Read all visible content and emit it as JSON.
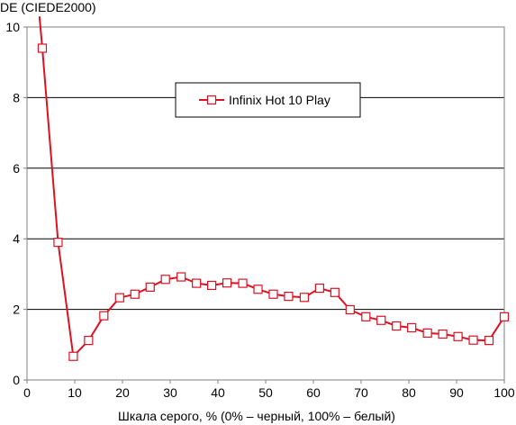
{
  "chart_data": {
    "type": "line",
    "title": "",
    "ylabel": "DE (CIEDE2000)",
    "xlabel": "Шкала серого, % (0% – черный, 100% – белый)",
    "xlim": [
      0,
      100
    ],
    "ylim": [
      0,
      10
    ],
    "x_ticks": [
      0,
      10,
      20,
      30,
      40,
      50,
      60,
      70,
      80,
      90,
      100
    ],
    "y_ticks": [
      0,
      2,
      4,
      6,
      8,
      10
    ],
    "grid": "horizontal",
    "legend": {
      "placement": "top-center",
      "entries": [
        "Infinix Hot 10 Play"
      ]
    },
    "colors": {
      "series": "#dd1122",
      "marker_fill": "#ffffff",
      "grid": "#000000",
      "frame": "#808080"
    },
    "series": [
      {
        "name": "Infinix Hot 10 Play",
        "marker": "square",
        "line_start": {
          "x": 2.6,
          "y": 10.3
        },
        "points": [
          {
            "x": 3.2,
            "y": 9.4
          },
          {
            "x": 6.5,
            "y": 3.9
          },
          {
            "x": 9.7,
            "y": 0.67
          },
          {
            "x": 12.9,
            "y": 1.12
          },
          {
            "x": 16.1,
            "y": 1.82
          },
          {
            "x": 19.4,
            "y": 2.33
          },
          {
            "x": 22.6,
            "y": 2.43
          },
          {
            "x": 25.8,
            "y": 2.63
          },
          {
            "x": 29.0,
            "y": 2.85
          },
          {
            "x": 32.3,
            "y": 2.92
          },
          {
            "x": 35.5,
            "y": 2.74
          },
          {
            "x": 38.7,
            "y": 2.68
          },
          {
            "x": 41.9,
            "y": 2.75
          },
          {
            "x": 45.2,
            "y": 2.74
          },
          {
            "x": 48.4,
            "y": 2.57
          },
          {
            "x": 51.6,
            "y": 2.43
          },
          {
            "x": 54.8,
            "y": 2.37
          },
          {
            "x": 58.1,
            "y": 2.34
          },
          {
            "x": 61.3,
            "y": 2.6
          },
          {
            "x": 64.5,
            "y": 2.48
          },
          {
            "x": 67.7,
            "y": 1.99
          },
          {
            "x": 71.0,
            "y": 1.79
          },
          {
            "x": 74.2,
            "y": 1.69
          },
          {
            "x": 77.4,
            "y": 1.53
          },
          {
            "x": 80.6,
            "y": 1.48
          },
          {
            "x": 83.9,
            "y": 1.33
          },
          {
            "x": 87.1,
            "y": 1.3
          },
          {
            "x": 90.3,
            "y": 1.23
          },
          {
            "x": 93.5,
            "y": 1.13
          },
          {
            "x": 96.8,
            "y": 1.12
          },
          {
            "x": 100.0,
            "y": 1.79
          }
        ]
      }
    ]
  }
}
